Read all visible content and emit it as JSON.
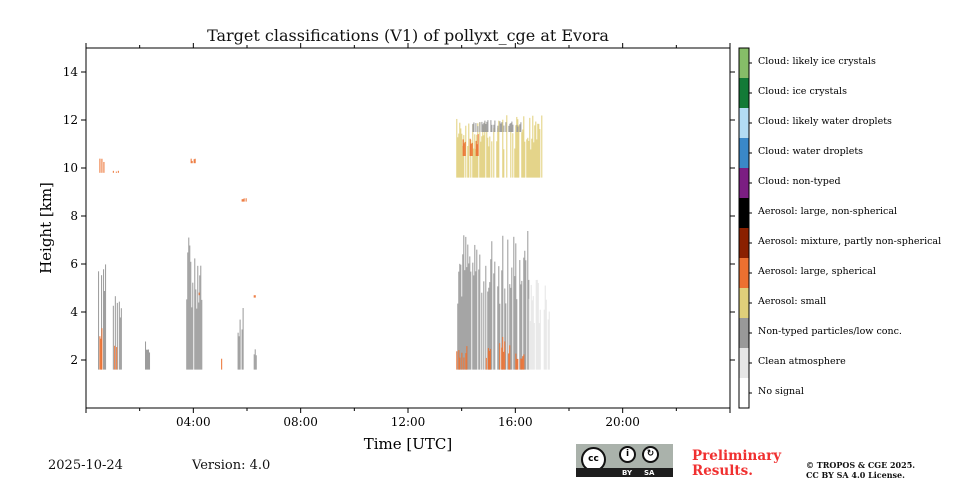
{
  "chart_data": {
    "type": "heatmap",
    "title": "Target classifications (V1) of pollyxt_cge at Evora",
    "xlabel": "Time [UTC]",
    "ylabel": "Height [km]",
    "xlim_hours": [
      0,
      24
    ],
    "ylim_km": [
      0,
      15
    ],
    "x_ticks": [
      {
        "h": 4,
        "label": "04:00"
      },
      {
        "h": 8,
        "label": "08:00"
      },
      {
        "h": 12,
        "label": "12:00"
      },
      {
        "h": 16,
        "label": "16:00"
      },
      {
        "h": 20,
        "label": "20:00"
      }
    ],
    "y_ticks": [
      {
        "v": 2,
        "label": "2"
      },
      {
        "v": 4,
        "label": "4"
      },
      {
        "v": 6,
        "label": "6"
      },
      {
        "v": 8,
        "label": "8"
      },
      {
        "v": 10,
        "label": "10"
      },
      {
        "v": 12,
        "label": "12"
      },
      {
        "v": 14,
        "label": "14"
      }
    ],
    "classes": [
      {
        "label": "No signal",
        "color": "#ffffff"
      },
      {
        "label": "Clean atmosphere",
        "color": "#e6e6e6"
      },
      {
        "label": "Non-typed particles/low conc.",
        "color": "#999999"
      },
      {
        "label": "Aerosol: small",
        "color": "#e0cf7a"
      },
      {
        "label": "Aerosol: large, spherical",
        "color": "#ec7030"
      },
      {
        "label": "Aerosol: mixture, partly non-spherical",
        "color": "#8a2000"
      },
      {
        "label": "Aerosol: large, non-spherical",
        "color": "#000000"
      },
      {
        "label": "Cloud: non-typed",
        "color": "#7b1e82"
      },
      {
        "label": "Cloud: water droplets",
        "color": "#3a88c8"
      },
      {
        "label": "Cloud: likely water droplets",
        "color": "#b3dcf4"
      },
      {
        "label": "Cloud: ice crystals",
        "color": "#137a37"
      },
      {
        "label": "Cloud: likely ice crystals",
        "color": "#86bd68"
      }
    ],
    "features": [
      {
        "t": [
          0.45,
          0.75
        ],
        "h": [
          1.6,
          7.0
        ],
        "cls": 2
      },
      {
        "t": [
          0.5,
          0.65
        ],
        "h": [
          1.6,
          4.0
        ],
        "cls": 4
      },
      {
        "t": [
          0.5,
          0.65
        ],
        "h": [
          9.8,
          10.4
        ],
        "cls": 4
      },
      {
        "t": [
          1.0,
          1.3
        ],
        "h": [
          1.6,
          6.0
        ],
        "cls": 2
      },
      {
        "t": [
          1.05,
          1.15
        ],
        "h": [
          1.6,
          3.0
        ],
        "cls": 4
      },
      {
        "t": [
          1.0,
          1.2
        ],
        "h": [
          9.8,
          9.9
        ],
        "cls": 4
      },
      {
        "t": [
          2.2,
          2.35
        ],
        "h": [
          1.6,
          2.8
        ],
        "cls": 2
      },
      {
        "t": [
          3.7,
          4.3
        ],
        "h": [
          1.6,
          7.2
        ],
        "cls": 2
      },
      {
        "t": [
          3.9,
          4.1
        ],
        "h": [
          10.2,
          10.4
        ],
        "cls": 4
      },
      {
        "t": [
          4.2,
          4.3
        ],
        "h": [
          4.7,
          4.9
        ],
        "cls": 4
      },
      {
        "t": [
          5.0,
          5.05
        ],
        "h": [
          1.6,
          2.1
        ],
        "cls": 4
      },
      {
        "t": [
          5.65,
          5.95
        ],
        "h": [
          1.6,
          4.5
        ],
        "cls": 2
      },
      {
        "t": [
          5.8,
          5.95
        ],
        "h": [
          8.6,
          8.8
        ],
        "cls": 4
      },
      {
        "t": [
          6.25,
          6.35
        ],
        "h": [
          1.6,
          2.6
        ],
        "cls": 2
      },
      {
        "t": [
          6.25,
          6.35
        ],
        "h": [
          4.6,
          4.8
        ],
        "cls": 4
      },
      {
        "t": [
          13.8,
          16.5
        ],
        "h": [
          1.6,
          7.5
        ],
        "cls": 2
      },
      {
        "t": [
          16.5,
          17.3
        ],
        "h": [
          1.6,
          5.5
        ],
        "cls": 1
      },
      {
        "t": [
          13.8,
          14.2
        ],
        "h": [
          1.6,
          2.6
        ],
        "cls": 4
      },
      {
        "t": [
          14.9,
          15.1
        ],
        "h": [
          1.6,
          2.5
        ],
        "cls": 4
      },
      {
        "t": [
          15.4,
          15.8
        ],
        "h": [
          1.6,
          3.0
        ],
        "cls": 4
      },
      {
        "t": [
          16.0,
          16.3
        ],
        "h": [
          1.6,
          2.5
        ],
        "cls": 4
      },
      {
        "t": [
          13.8,
          17.0
        ],
        "h": [
          9.6,
          12.2
        ],
        "cls": 3
      },
      {
        "t": [
          14.0,
          14.6
        ],
        "h": [
          10.5,
          11.5
        ],
        "cls": 4
      },
      {
        "t": [
          14.4,
          16.2
        ],
        "h": [
          11.5,
          12.0
        ],
        "cls": 2
      }
    ]
  },
  "footer": {
    "date": "2025-10-24",
    "version": "Version: 4.0",
    "preliminary": "Preliminary Results.",
    "copyright_line1": "© TROPOS & CGE 2025.",
    "copyright_line2": "CC BY SA 4.0 License.",
    "cc_logo": {
      "cc": "cc",
      "by": "BY",
      "sa": "SA"
    }
  }
}
